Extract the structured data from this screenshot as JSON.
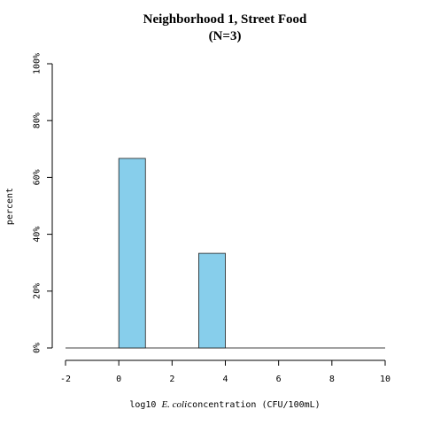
{
  "chart_data": {
    "type": "bar",
    "title": "Neighborhood 1, Street Food",
    "subtitle": "(N=3)",
    "ylabel": "percent",
    "xlabel": {
      "prefix": "log10 ",
      "italic": "E. coli",
      "suffix": "concentration (CFU/100mL)"
    },
    "xlim": [
      -2,
      10
    ],
    "ylim": [
      0,
      100
    ],
    "xticks": [
      "-2",
      "0",
      "2",
      "4",
      "6",
      "8",
      "10"
    ],
    "xtick_values": [
      -2,
      0,
      2,
      4,
      6,
      8,
      10
    ],
    "yticks": [
      "0%",
      "20%",
      "40%",
      "60%",
      "80%",
      "100%"
    ],
    "ytick_values": [
      0,
      20,
      40,
      60,
      80,
      100
    ],
    "bins": [
      {
        "x0": 0,
        "x1": 1,
        "value": 66.7
      },
      {
        "x0": 3,
        "x1": 4,
        "value": 33.3
      }
    ],
    "baseline_range": [
      -2,
      10
    ],
    "bar_color": "#87ceeb",
    "grid": false,
    "legend": "none"
  }
}
